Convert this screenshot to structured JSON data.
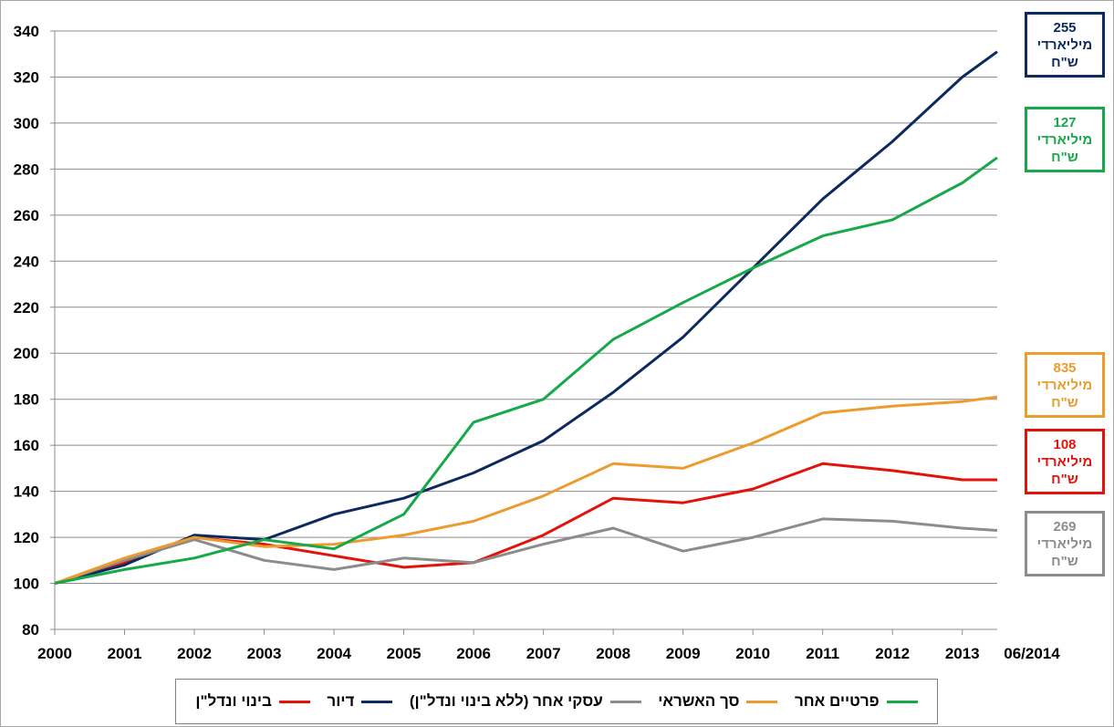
{
  "chart_data": {
    "type": "line",
    "title": "",
    "xlabel": "",
    "ylabel": "",
    "ylim": [
      80,
      340
    ],
    "y_ticks": [
      "80",
      "100",
      "120",
      "140",
      "160",
      "180",
      "200",
      "220",
      "240",
      "260",
      "280",
      "300",
      "320",
      "340"
    ],
    "x_tick_labels": [
      "2000",
      "2001",
      "2002",
      "2003",
      "2004",
      "2005",
      "2006",
      "2007",
      "2008",
      "2009",
      "2010",
      "2011",
      "2012",
      "2013",
      "06/2014"
    ],
    "x": [
      2000,
      2001,
      2002,
      2003,
      2004,
      2005,
      2006,
      2007,
      2008,
      2009,
      2010,
      2011,
      2012,
      2013,
      2013.5
    ],
    "grid": true,
    "legend_placement": "bottom",
    "series": [
      {
        "name": "בינוי ונדל\"ן",
        "color": "#e3120b",
        "values": [
          100,
          109,
          120,
          117,
          112,
          107,
          109,
          121,
          137,
          135,
          141,
          152,
          149,
          145,
          145
        ]
      },
      {
        "name": "דיור",
        "color": "#0d2a5e",
        "values": [
          100,
          108,
          121,
          119,
          130,
          137,
          148,
          162,
          183,
          207,
          237,
          267,
          292,
          320,
          331
        ]
      },
      {
        "name": "עסקי אחר (ללא בינוי ונדל\"ן)",
        "color": "#8c8c8c",
        "values": [
          100,
          110,
          119,
          110,
          106,
          111,
          109,
          117,
          124,
          114,
          120,
          128,
          127,
          124,
          123
        ]
      },
      {
        "name": "סך האשראי",
        "color": "#ec9b2e",
        "values": [
          100,
          111,
          120,
          116,
          117,
          121,
          127,
          138,
          152,
          150,
          161,
          174,
          177,
          179,
          181
        ]
      },
      {
        "name": "פרטיים אחר",
        "color": "#17a84a",
        "values": [
          100,
          106,
          111,
          119,
          115,
          130,
          170,
          180,
          206,
          222,
          237,
          251,
          258,
          274,
          285
        ]
      }
    ]
  },
  "callouts": [
    {
      "series": "דיור",
      "value": "255",
      "line2": "מיליארדי",
      "line3": "ש\"ח",
      "color": "#0d2a5e"
    },
    {
      "series": "פרטיים אחר",
      "value": "127",
      "line2": "מיליארדי",
      "line3": "ש\"ח",
      "color": "#17a84a"
    },
    {
      "series": "סך האשראי",
      "value": "835",
      "line2": "מיליארדי",
      "line3": "ש\"ח",
      "color": "#ec9b2e"
    },
    {
      "series": "בינוי ונדל\"ן",
      "value": "108",
      "line2": "מיליארדי",
      "line3": "ש\"ח",
      "color": "#e3120b"
    },
    {
      "series": "עסקי אחר (ללא בינוי ונדל\"ן)",
      "value": "269",
      "line2": "מיליארדי",
      "line3": "ש\"ח",
      "color": "#8c8c8c"
    }
  ]
}
